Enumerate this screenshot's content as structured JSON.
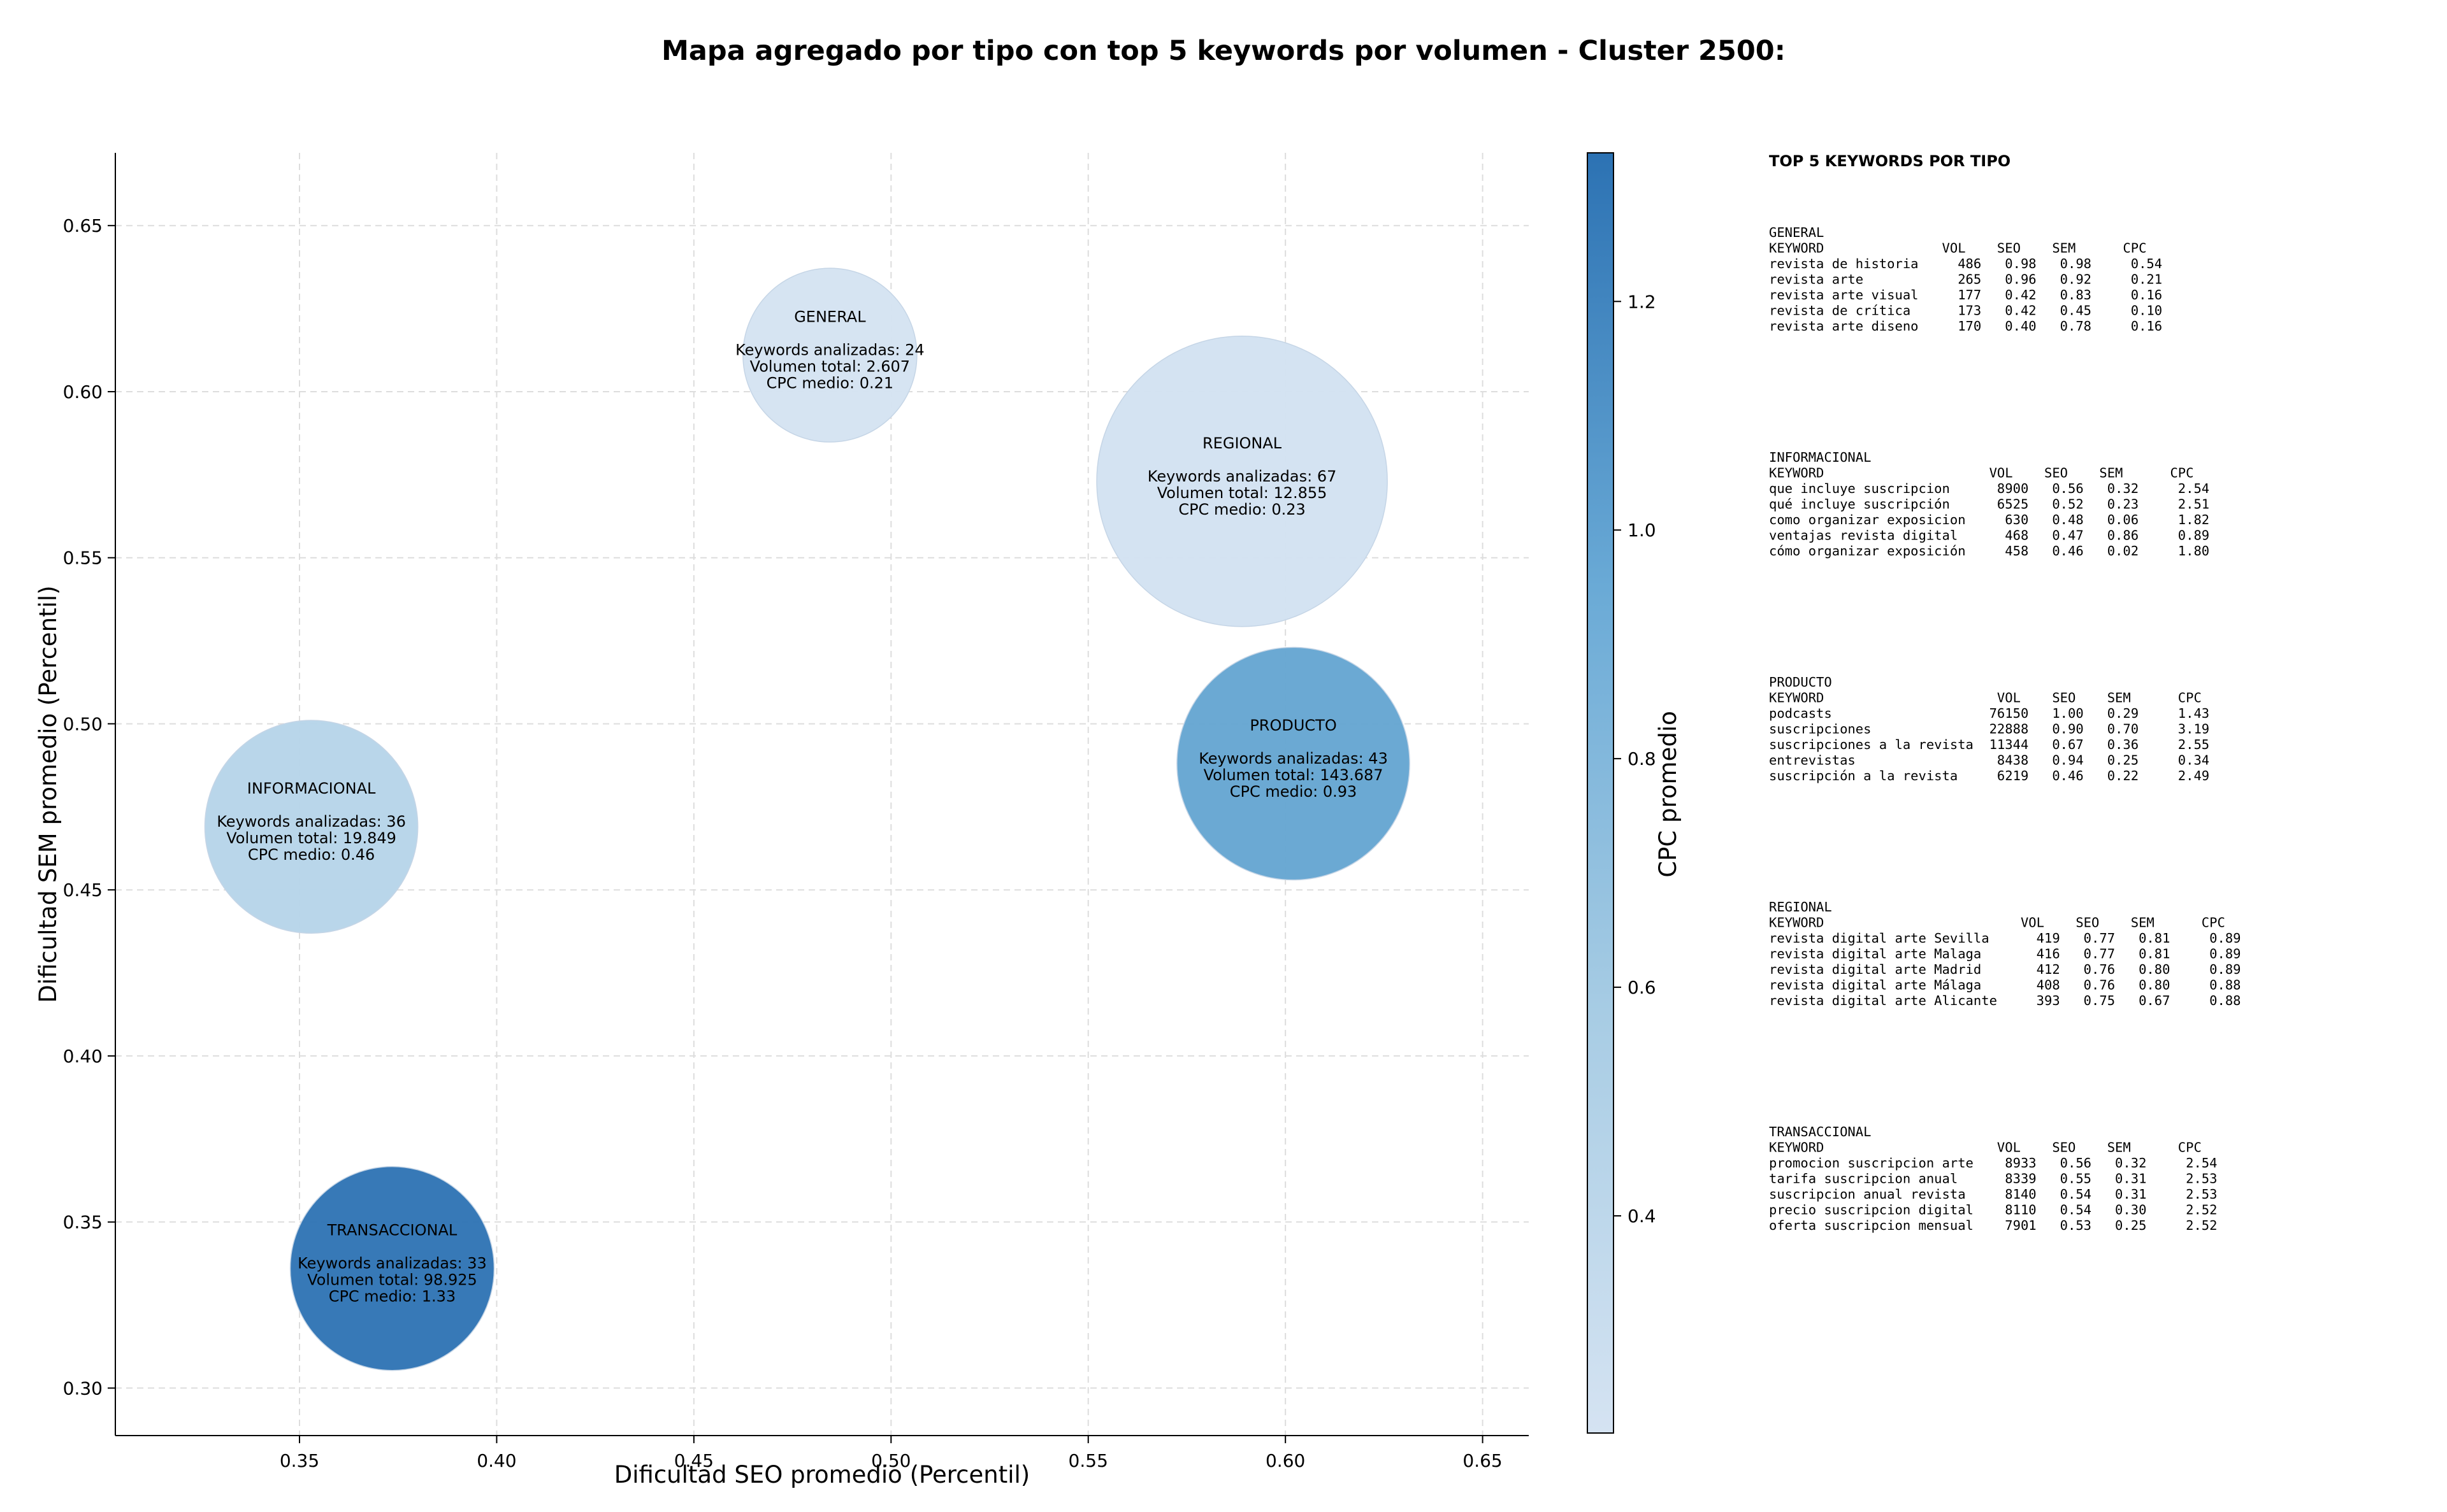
{
  "chart_data": {
    "type": "scatter",
    "title": "Mapa agregado por tipo con top 5 keywords por volumen - Cluster 2500:",
    "xlabel": "Dificultad SEO promedio (Percentil)",
    "ylabel": "Dificultad SEM promedio (Percentil)",
    "xlim": [
      0.3033,
      0.6617
    ],
    "ylim": [
      0.2857,
      0.6719
    ],
    "xticks": [
      "0.35",
      "0.40",
      "0.45",
      "0.50",
      "0.55",
      "0.60",
      "0.65"
    ],
    "yticks": [
      "0.30",
      "0.35",
      "0.40",
      "0.45",
      "0.50",
      "0.55",
      "0.60",
      "0.65"
    ],
    "grid": true,
    "colorbar": {
      "label": "CPC promedio",
      "range": [
        0.21,
        1.33
      ],
      "ticks": [
        "0.4",
        "0.6",
        "0.8",
        "1.0",
        "1.2"
      ],
      "colors": [
        "#d5e3f2",
        "#a7cce4",
        "#6aaad6",
        "#2c72b3"
      ]
    },
    "points": [
      {
        "type": "GENERAL",
        "x": 0.4845,
        "y": 0.611,
        "keywords_line": "Keywords analizadas: 24",
        "volume_line": "Volumen total: 2.607",
        "cpc_line": "CPC medio: 0.21",
        "keywords": 24,
        "volume": 2607,
        "cpc": 0.21,
        "color": "#d4e3f1"
      },
      {
        "type": "REGIONAL",
        "x": 0.589,
        "y": 0.573,
        "keywords_line": "Keywords analizadas: 67",
        "volume_line": "Volumen total: 12.855",
        "cpc_line": "CPC medio: 0.23",
        "keywords": 67,
        "volume": 12855,
        "cpc": 0.23,
        "color": "#d2e2f1"
      },
      {
        "type": "INFORMACIONAL",
        "x": 0.353,
        "y": 0.469,
        "keywords_line": "Keywords analizadas: 36",
        "volume_line": "Volumen total: 19.849",
        "cpc_line": "CPC medio: 0.46",
        "keywords": 36,
        "volume": 19849,
        "cpc": 0.46,
        "color": "#b5d4e9"
      },
      {
        "type": "PRODUCTO",
        "x": 0.602,
        "y": 0.488,
        "keywords_line": "Keywords analizadas: 43",
        "volume_line": "Volumen total: 143.687",
        "cpc_line": "CPC medio: 0.93",
        "keywords": 43,
        "volume": 143687,
        "cpc": 0.93,
        "color": "#63a4d1"
      },
      {
        "type": "TRANSACCIONAL",
        "x": 0.3735,
        "y": 0.336,
        "keywords_line": "Keywords analizadas: 33",
        "volume_line": "Volumen total: 98.925",
        "cpc_line": "CPC medio: 1.33",
        "keywords": 33,
        "volume": 98925,
        "cpc": 1.33,
        "color": "#2c72b3"
      }
    ]
  },
  "side_panel": {
    "heading": "TOP 5 KEYWORDS POR TIPO",
    "groups": [
      {
        "name": "GENERAL",
        "header": "KEYWORD               VOL    SEO    SEM      CPC",
        "rows": [
          "revista de historia     486   0.98   0.98     0.54",
          "revista arte            265   0.96   0.92     0.21",
          "revista arte visual     177   0.42   0.83     0.16",
          "revista de crítica      173   0.42   0.45     0.10",
          "revista arte diseno     170   0.40   0.78     0.16"
        ]
      },
      {
        "name": "INFORMACIONAL",
        "header": "KEYWORD                     VOL    SEO    SEM      CPC",
        "rows": [
          "que incluye suscripcion      8900   0.56   0.32     2.54",
          "qué incluye suscripción      6525   0.52   0.23     2.51",
          "como organizar exposicion     630   0.48   0.06     1.82",
          "ventajas revista digital      468   0.47   0.86     0.89",
          "cómo organizar exposición     458   0.46   0.02     1.80"
        ]
      },
      {
        "name": "PRODUCTO",
        "header": "KEYWORD                      VOL    SEO    SEM      CPC",
        "rows": [
          "podcasts                    76150   1.00   0.29     1.43",
          "suscripciones               22888   0.90   0.70     3.19",
          "suscripciones a la revista  11344   0.67   0.36     2.55",
          "entrevistas                  8438   0.94   0.25     0.34",
          "suscripción a la revista     6219   0.46   0.22     2.49"
        ]
      },
      {
        "name": "REGIONAL",
        "header": "KEYWORD                         VOL    SEO    SEM      CPC",
        "rows": [
          "revista digital arte Sevilla      419   0.77   0.81     0.89",
          "revista digital arte Malaga       416   0.77   0.81     0.89",
          "revista digital arte Madrid       412   0.76   0.80     0.89",
          "revista digital arte Málaga       408   0.76   0.80     0.88",
          "revista digital arte Alicante     393   0.75   0.67     0.88"
        ]
      },
      {
        "name": "TRANSACCIONAL",
        "header": "KEYWORD                      VOL    SEO    SEM      CPC",
        "rows": [
          "promocion suscripcion arte    8933   0.56   0.32     2.54",
          "tarifa suscripcion anual      8339   0.55   0.31     2.53",
          "suscripcion anual revista     8140   0.54   0.31     2.53",
          "precio suscripcion digital    8110   0.54   0.30     2.52",
          "oferta suscripcion mensual    7901   0.53   0.25     2.52"
        ]
      }
    ]
  }
}
